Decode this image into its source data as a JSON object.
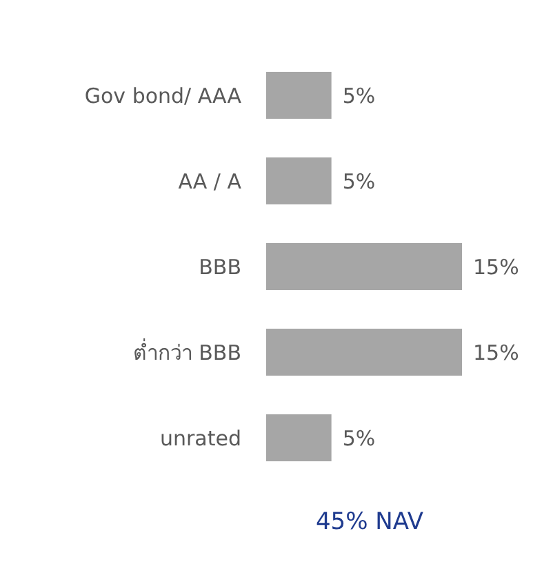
{
  "chart_data": {
    "type": "bar",
    "orientation": "horizontal",
    "categories": [
      "Gov bond/ AAA",
      "AA / A",
      "BBB",
      "ต่ำกว่า BBB",
      "unrated"
    ],
    "values": [
      5,
      5,
      15,
      15,
      5
    ],
    "value_labels": [
      "5%",
      "5%",
      "15%",
      "15%",
      "5%"
    ],
    "color": "#a6a6a6",
    "annotations": [
      "45% NAV"
    ]
  }
}
